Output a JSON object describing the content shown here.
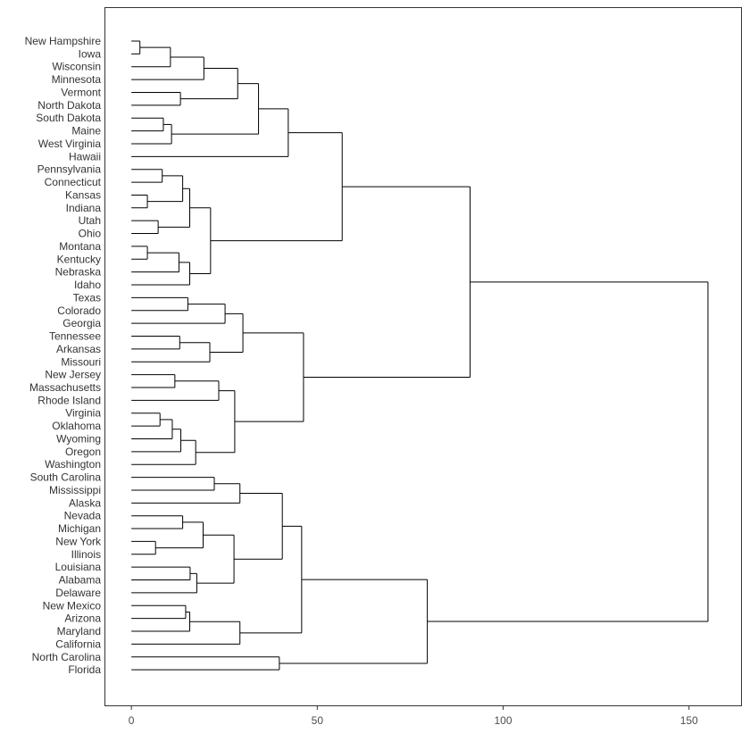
{
  "chart_data": {
    "type": "dendrogram",
    "title": "",
    "xlabel": "",
    "ylabel": "",
    "xlim": [
      -7,
      164
    ],
    "x_ticks": [
      0,
      50,
      100,
      150
    ],
    "x_tick_labels": [
      "0",
      "50",
      "100",
      "150"
    ],
    "grid": false,
    "labels": [
      "New Hampshire",
      "Iowa",
      "Wisconsin",
      "Minnesota",
      "Vermont",
      "North Dakota",
      "South Dakota",
      "Maine",
      "West Virginia",
      "Hawaii",
      "Pennsylvania",
      "Connecticut",
      "Kansas",
      "Indiana",
      "Utah",
      "Ohio",
      "Montana",
      "Kentucky",
      "Nebraska",
      "Idaho",
      "Texas",
      "Colorado",
      "Georgia",
      "Tennessee",
      "Arkansas",
      "Missouri",
      "New Jersey",
      "Massachusetts",
      "Rhode Island",
      "Virginia",
      "Oklahoma",
      "Wyoming",
      "Oregon",
      "Washington",
      "South Carolina",
      "Mississippi",
      "Alaska",
      "Nevada",
      "Michigan",
      "New York",
      "Illinois",
      "Louisiana",
      "Alabama",
      "Delaware",
      "New Mexico",
      "Arizona",
      "Maryland",
      "California",
      "North Carolina",
      "Florida"
    ],
    "merges": [
      {
        "a": "New Hampshire",
        "b": "Iowa",
        "height": 2.3
      },
      {
        "a": "Wisconsin",
        "b": "c1",
        "height": 10.5
      },
      {
        "a": "Minnesota",
        "b": "c2",
        "height": 19.5
      },
      {
        "a": "Vermont",
        "b": "North Dakota",
        "height": 13.2
      },
      {
        "a": "c3",
        "b": "c4",
        "height": 28.6
      },
      {
        "a": "South Dakota",
        "b": "Maine",
        "height": 8.6
      },
      {
        "a": "c6",
        "b": "West Virginia",
        "height": 10.8
      },
      {
        "a": "c5",
        "b": "c7",
        "height": 34.2
      },
      {
        "a": "c8",
        "b": "Hawaii",
        "height": 42.2
      },
      {
        "a": "Pennsylvania",
        "b": "Connecticut",
        "height": 8.3
      },
      {
        "a": "Kansas",
        "b": "Indiana",
        "height": 4.3
      },
      {
        "a": "c10",
        "b": "c11",
        "height": 13.8
      },
      {
        "a": "Utah",
        "b": "Ohio",
        "height": 7.2
      },
      {
        "a": "c12",
        "b": "c13",
        "height": 15.7
      },
      {
        "a": "Montana",
        "b": "Kentucky",
        "height": 4.3
      },
      {
        "a": "c15",
        "b": "Nebraska",
        "height": 12.8
      },
      {
        "a": "c16",
        "b": "Idaho",
        "height": 15.7
      },
      {
        "a": "c14",
        "b": "c17",
        "height": 21.3
      },
      {
        "a": "c9",
        "b": "c18",
        "height": 56.7
      },
      {
        "a": "Texas",
        "b": "Colorado",
        "height": 15.2
      },
      {
        "a": "c20",
        "b": "Georgia",
        "height": 25.2
      },
      {
        "a": "Tennessee",
        "b": "Arkansas",
        "height": 13.0
      },
      {
        "a": "c22",
        "b": "Missouri",
        "height": 21.1
      },
      {
        "a": "c21",
        "b": "c23",
        "height": 30.0
      },
      {
        "a": "New Jersey",
        "b": "Massachusetts",
        "height": 11.7
      },
      {
        "a": "c25",
        "b": "Rhode Island",
        "height": 23.5
      },
      {
        "a": "Virginia",
        "b": "Oklahoma",
        "height": 7.7
      },
      {
        "a": "c27",
        "b": "Wyoming",
        "height": 11.0
      },
      {
        "a": "c28",
        "b": "Oregon",
        "height": 13.3
      },
      {
        "a": "c29",
        "b": "Washington",
        "height": 17.3
      },
      {
        "a": "c26",
        "b": "c30",
        "height": 27.8
      },
      {
        "a": "c24",
        "b": "c31",
        "height": 46.3
      },
      {
        "a": "c19",
        "b": "c32",
        "height": 91.1
      },
      {
        "a": "South Carolina",
        "b": "Mississippi",
        "height": 22.3
      },
      {
        "a": "c34",
        "b": "Alaska",
        "height": 29.2
      },
      {
        "a": "Nevada",
        "b": "Michigan",
        "height": 13.8
      },
      {
        "a": "New York",
        "b": "Illinois",
        "height": 6.5
      },
      {
        "a": "c36",
        "b": "c37",
        "height": 19.3
      },
      {
        "a": "Louisiana",
        "b": "Alabama",
        "height": 15.8
      },
      {
        "a": "c39",
        "b": "Delaware",
        "height": 17.6
      },
      {
        "a": "c38",
        "b": "c40",
        "height": 27.6
      },
      {
        "a": "c35",
        "b": "c41",
        "height": 40.6
      },
      {
        "a": "New Mexico",
        "b": "Arizona",
        "height": 14.6
      },
      {
        "a": "c43",
        "b": "Maryland",
        "height": 15.7
      },
      {
        "a": "c44",
        "b": "California",
        "height": 29.2
      },
      {
        "a": "c42",
        "b": "c45",
        "height": 45.8
      },
      {
        "a": "North Carolina",
        "b": "Florida",
        "height": 39.8
      },
      {
        "a": "c46",
        "b": "c47",
        "height": 79.6
      },
      {
        "a": "c33",
        "b": "c48",
        "height": 155.1
      }
    ]
  }
}
